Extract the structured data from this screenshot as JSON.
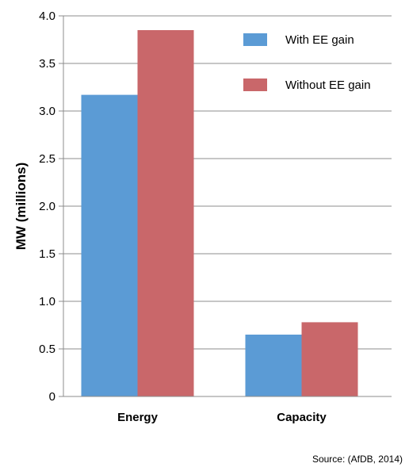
{
  "chart_data": {
    "type": "bar",
    "categories": [
      "Energy",
      "Capacity"
    ],
    "series": [
      {
        "name": "With EE gain",
        "values": [
          3.17,
          0.65
        ],
        "color": "#5B9BD5"
      },
      {
        "name": "Without EE gain",
        "values": [
          3.85,
          0.78
        ],
        "color": "#C9676A"
      }
    ],
    "title": "",
    "xlabel": "",
    "ylabel": "MW (millions)",
    "ylim": [
      0,
      4.0
    ],
    "yticks": [
      "0",
      "0.5",
      "1.0",
      "1.5",
      "2.0",
      "2.5",
      "3.0",
      "3.5",
      "4.0"
    ],
    "grid": true,
    "legend": "top-right"
  },
  "source_note": "Source: (AfDB, 2014)"
}
